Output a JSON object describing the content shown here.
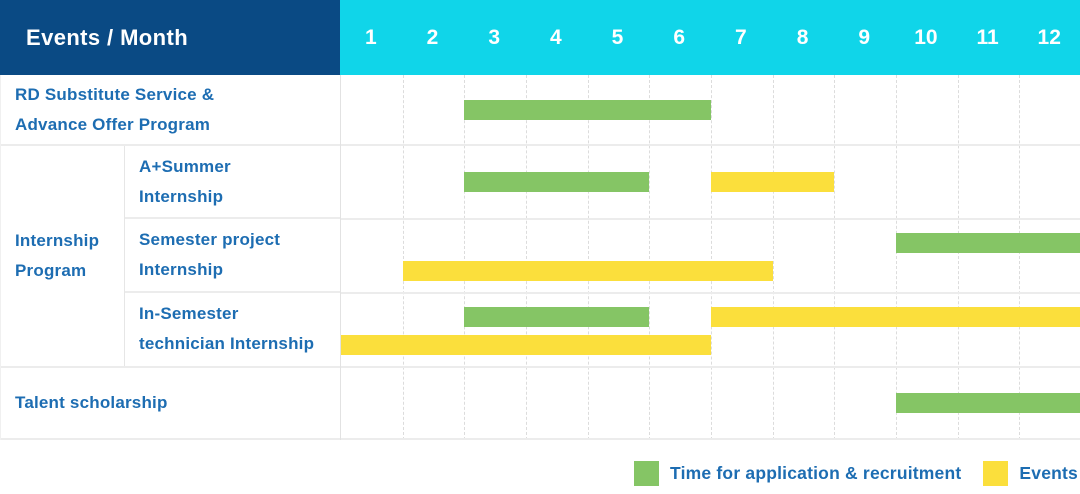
{
  "colors": {
    "header_bg": "#0A4A84",
    "months_bg": "#10D5E9",
    "text_blue": "#1D6DB2",
    "bar_green": "#85C565",
    "bar_yellow": "#FBDF3C",
    "row_line": "#ECECEC",
    "column_dash_line": "#DCDCDC"
  },
  "header": {
    "title": "Events / Month",
    "months": [
      "1",
      "2",
      "3",
      "4",
      "5",
      "6",
      "7",
      "8",
      "9",
      "10",
      "11",
      "12"
    ]
  },
  "group": {
    "label": "Internship Program",
    "label_lines": [
      "Internship",
      "Program"
    ]
  },
  "legend": {
    "items": [
      {
        "key": "application",
        "label": "Time for application & recruitment",
        "color": "#85C565"
      },
      {
        "key": "events",
        "label": "Events",
        "color": "#FBDF3C"
      }
    ]
  },
  "chart_data": {
    "type": "bar",
    "subtype": "gantt",
    "title": "Events / Month",
    "x_axis": {
      "unit": "month",
      "ticks": [
        1,
        2,
        3,
        4,
        5,
        6,
        7,
        8,
        9,
        10,
        11,
        12
      ],
      "range": [
        1,
        12
      ]
    },
    "series_colors": {
      "Time for application & recruitment": "#85C565",
      "Events": "#FBDF3C"
    },
    "rows": [
      {
        "label": "RD Substitute Service & Advance Offer Program",
        "label_lines": [
          "RD Substitute Service &",
          "Advance Offer Program"
        ],
        "group": "",
        "lanes": 1,
        "bars": [
          {
            "series": "Time for application & recruitment",
            "start_month": 3,
            "end_month": 6,
            "lane": 0
          }
        ]
      },
      {
        "label": "A+Summer Internship",
        "label_lines": [
          "A+Summer",
          "Internship"
        ],
        "group": "Internship Program",
        "lanes": 1,
        "bars": [
          {
            "series": "Time for application & recruitment",
            "start_month": 3,
            "end_month": 5,
            "lane": 0
          },
          {
            "series": "Events",
            "start_month": 7,
            "end_month": 8,
            "lane": 0
          }
        ]
      },
      {
        "label": "Semester project Internship",
        "label_lines": [
          "Semester project",
          "Internship"
        ],
        "group": "Internship Program",
        "lanes": 2,
        "bars": [
          {
            "series": "Time for application & recruitment",
            "start_month": 10,
            "end_month": 12,
            "lane": 0
          },
          {
            "series": "Events",
            "start_month": 2,
            "end_month": 7,
            "lane": 1
          }
        ]
      },
      {
        "label": "In-Semester technician Internship",
        "label_lines": [
          "In-Semester",
          "technician Internship"
        ],
        "group": "Internship Program",
        "lanes": 2,
        "bars": [
          {
            "series": "Time for application & recruitment",
            "start_month": 3,
            "end_month": 5,
            "lane": 0
          },
          {
            "series": "Events",
            "start_month": 7,
            "end_month": 12,
            "lane": 0
          },
          {
            "series": "Events",
            "start_month": 1,
            "end_month": 6,
            "lane": 1
          }
        ]
      },
      {
        "label": "Talent scholarship",
        "label_lines": [
          "Talent scholarship"
        ],
        "group": "",
        "lanes": 1,
        "bars": [
          {
            "series": "Time for application & recruitment",
            "start_month": 10,
            "end_month": 12,
            "lane": 0
          }
        ]
      }
    ]
  }
}
